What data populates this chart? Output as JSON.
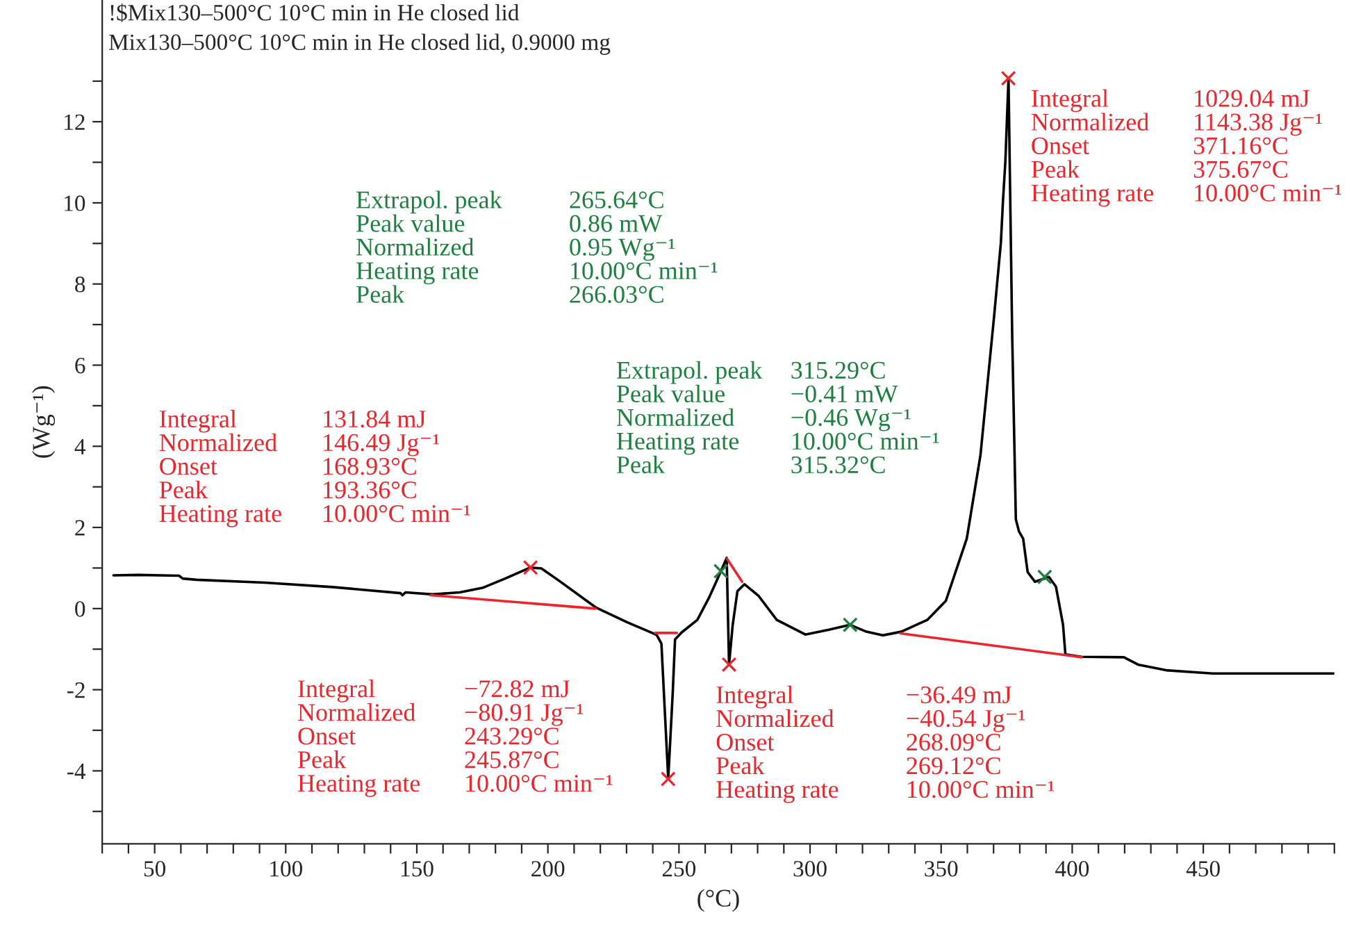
{
  "chart_data": {
    "type": "line",
    "title": "!$Mix130–500°C 10°C min in He closed lid",
    "subtitle": "Mix130–500°C 10°C min in He closed lid, 0.9000 mg",
    "xlabel": "(°C)",
    "ylabel": "(Wg⁻¹)",
    "xlim": [
      30,
      500
    ],
    "ylim": [
      -5.8,
      15
    ],
    "xticks": [
      {
        "value": 30,
        "label": null
      },
      {
        "value": 40,
        "label": null
      },
      50,
      {
        "value": 60,
        "label": null
      },
      {
        "value": 70,
        "label": null
      },
      {
        "value": 80,
        "label": null
      },
      {
        "value": 90,
        "label": null
      },
      100,
      {
        "value": 110,
        "label": null
      },
      {
        "value": 120,
        "label": null
      },
      {
        "value": 130,
        "label": null
      },
      {
        "value": 140,
        "label": null
      },
      150,
      {
        "value": 160,
        "label": null
      },
      {
        "value": 170,
        "label": null
      },
      {
        "value": 180,
        "label": null
      },
      {
        "value": 190,
        "label": null
      },
      200,
      {
        "value": 210,
        "label": null
      },
      {
        "value": 220,
        "label": null
      },
      {
        "value": 230,
        "label": null
      },
      {
        "value": 240,
        "label": null
      },
      250,
      {
        "value": 260,
        "label": null
      },
      {
        "value": 270,
        "label": null
      },
      {
        "value": 280,
        "label": null
      },
      {
        "value": 290,
        "label": null
      },
      300,
      {
        "value": 310,
        "label": null
      },
      {
        "value": 320,
        "label": null
      },
      {
        "value": 330,
        "label": null
      },
      {
        "value": 340,
        "label": null
      },
      350,
      {
        "value": 360,
        "label": null
      },
      {
        "value": 370,
        "label": null
      },
      {
        "value": 380,
        "label": null
      },
      {
        "value": 390,
        "label": null
      },
      400,
      {
        "value": 410,
        "label": null
      },
      {
        "value": 420,
        "label": null
      },
      {
        "value": 430,
        "label": null
      },
      {
        "value": 440,
        "label": null
      },
      450,
      {
        "value": 460,
        "label": null
      },
      {
        "value": 470,
        "label": null
      },
      {
        "value": 480,
        "label": null
      },
      {
        "value": 490,
        "label": null
      },
      {
        "value": 500,
        "label": null
      }
    ],
    "yticks": [
      {
        "value": -5,
        "label": null
      },
      -4,
      {
        "value": -3,
        "label": null
      },
      -2,
      {
        "value": -1,
        "label": null
      },
      0,
      {
        "value": 1,
        "label": null
      },
      2,
      {
        "value": 3,
        "label": null
      },
      4,
      {
        "value": 5,
        "label": null
      },
      6,
      {
        "value": 7,
        "label": null
      },
      8,
      {
        "value": 9,
        "label": null
      },
      10,
      {
        "value": 11,
        "label": null
      },
      12,
      {
        "value": 13,
        "label": null
      }
    ],
    "grid": false,
    "legend": false,
    "series": [
      {
        "color": "#000000",
        "line_style": "solid",
        "x": [
          34.3,
          43.8,
          59.3,
          60.7,
          66,
          92,
          117.9,
          143.8,
          144.5,
          145.7,
          156,
          166.4,
          175,
          183.7,
          193.2,
          197.5,
          204.4,
          218.2,
          230.3,
          239.8,
          241.5,
          243.3,
          245.9,
          247.6,
          248.5,
          251,
          257,
          261.4,
          264.2,
          266,
          268.2,
          269.1,
          270.5,
          272.3,
          275,
          280.4,
          287.3,
          298.2,
          307.2,
          315.2,
          321.5,
          327.7,
          334.8,
          344.7,
          351.8,
          359.8,
          365,
          370.2,
          372.8,
          373.6,
          374.5,
          375.7,
          377.1,
          378.5,
          379.7,
          381.3,
          383,
          385.8,
          391.1,
          393.8,
          396.5,
          397.4,
          403.6,
          419.7,
          425.1,
          435.8,
          453.6,
          499.7
        ],
        "values": [
          0.82,
          0.83,
          0.81,
          0.74,
          0.71,
          0.64,
          0.53,
          0.38,
          0.33,
          0.4,
          0.35,
          0.4,
          0.51,
          0.74,
          1.01,
          0.99,
          0.68,
          0.03,
          -0.34,
          -0.6,
          -0.65,
          -0.86,
          -4.2,
          -2.1,
          -0.76,
          -0.59,
          -0.28,
          0.26,
          0.66,
          0.92,
          1.25,
          -1.38,
          -0.4,
          0.43,
          0.6,
          0.31,
          -0.28,
          -0.64,
          -0.52,
          -0.4,
          -0.57,
          -0.66,
          -0.57,
          -0.28,
          0.19,
          1.73,
          3.78,
          7.2,
          9.03,
          10.06,
          11.02,
          13.07,
          6.75,
          2.2,
          1.9,
          1.72,
          0.9,
          0.66,
          0.78,
          0.54,
          -0.4,
          -1.13,
          -1.19,
          -1.2,
          -1.38,
          -1.52,
          -1.6,
          -1.6
        ]
      },
      {
        "type": "line",
        "color": "#e8262b",
        "line_style": "solid",
        "x": [
          155.2,
          218.2
        ],
        "values": [
          0.33,
          0.0
        ]
      },
      {
        "type": "line",
        "color": "#e8262b",
        "line_style": "solid",
        "x": [
          240.9,
          249.2
        ],
        "values": [
          -0.6,
          -0.6
        ]
      },
      {
        "type": "line",
        "color": "#e8262b",
        "line_style": "solid",
        "x": [
          268.3,
          274.1
        ],
        "values": [
          1.23,
          0.66
        ]
      },
      {
        "type": "line",
        "color": "#e8262b",
        "line_style": "solid",
        "x": [
          334.4,
          403.6
        ],
        "values": [
          -0.61,
          -1.2
        ]
      },
      {
        "type": "scatter",
        "color": "#e8262b",
        "marker": "cross",
        "x": [
          193.36,
          245.87,
          269.12,
          375.67
        ],
        "values": [
          1.01,
          -4.2,
          -1.38,
          13.07
        ]
      },
      {
        "type": "scatter",
        "color": "#1e8040",
        "marker": "cross",
        "x": [
          266.0,
          315.3,
          389.5
        ],
        "values": [
          0.92,
          -0.4,
          0.78
        ]
      }
    ],
    "annotations": [
      "Integral\nNormalized\nOnset\nPeak\nHeating rate",
      "131.84 mJ\n146.49 Jg⁻¹\n168.93°C\n193.36°C\n10.00°C min⁻¹",
      "Extrapol. peak\nPeak value\nNormalized\nHeating rate\nPeak",
      "265.64°C\n0.86 mW\n0.95 Wg⁻¹\n10.00°C min⁻¹\n266.03°C",
      "Extrapol. peak\nPeak value\nNormalized\nHeating rate\nPeak",
      "315.29°C\n−0.41 mW\n−0.46 Wg⁻¹\n10.00°C min⁻¹\n315.32°C",
      "Integral\nNormalized\nOnset\nPeak\nHeating rate",
      "−72.82 mJ\n−80.91 Jg⁻¹\n243.29°C\n245.87°C\n10.00°C min⁻¹",
      "Integral\nNormalized\nOnset\nPeak\nHeating rate",
      "−36.49 mJ\n−40.54 Jg⁻¹\n268.09°C\n269.12°C\n10.00°C min⁻¹",
      "Integral\nNormalized\nOnset\nPeak\nHeating rate",
      "1029.04 mJ\n1143.38 Jg⁻¹\n371.16°C\n375.67°C\n10.00°C min⁻¹"
    ]
  }
}
